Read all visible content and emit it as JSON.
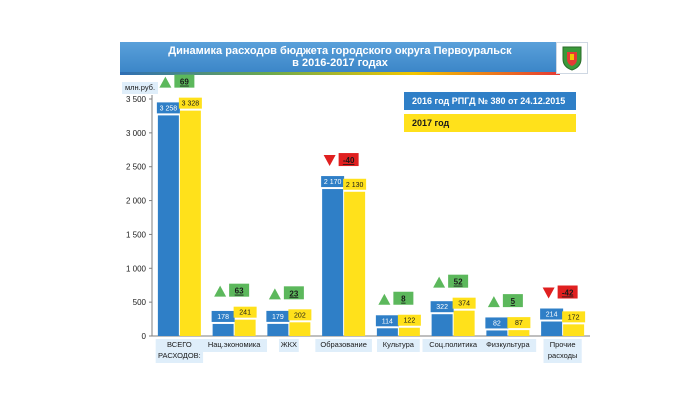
{
  "title_line1": "Динамика расходов бюджета городского округа Первоуральск",
  "title_line2": "в 2016-2017 годах",
  "emblem_icon": "coat-of-arms-icon",
  "legend": {
    "label_2016": "2016 год РПГД № 380 от 24.12.2015",
    "label_2017": "2017 год"
  },
  "colors": {
    "s2016": "#2f7fc7",
    "s2017": "#ffe11b",
    "up": "#5cb85c",
    "down": "#e02020",
    "title_bg": "#4a95d4"
  },
  "chart_data": {
    "type": "bar",
    "ylabel": "млн.руб.",
    "ylim": [
      0,
      3500
    ],
    "yticks": [
      0,
      500,
      1000,
      1500,
      2000,
      2500,
      3000,
      3500
    ],
    "ytick_labels": [
      "0",
      "500",
      "1 000",
      "1 500",
      "2 000",
      "2 500",
      "3 000",
      "3 500"
    ],
    "categories": [
      "ВСЕГО РАСХОДОВ:",
      "Нац.экономика",
      "ЖКХ",
      "Образование",
      "Культура",
      "Соц.политика",
      "Физкультура",
      "Прочие расходы"
    ],
    "category_lines": [
      [
        "ВСЕГО",
        "РАСХОДОВ:"
      ],
      [
        "Нац.экономика"
      ],
      [
        "ЖКХ"
      ],
      [
        "Образование"
      ],
      [
        "Культура"
      ],
      [
        "Соц.политика"
      ],
      [
        "Физкультура"
      ],
      [
        "Прочие",
        "расходы"
      ]
    ],
    "series": [
      {
        "name": "2016 год РПГД № 380 от 24.12.2015",
        "values": [
          3258,
          178,
          179,
          2170,
          114,
          322,
          82,
          214
        ],
        "labels": [
          "3 258",
          "178",
          "179",
          "2 170",
          "114",
          "322",
          "82",
          "214"
        ]
      },
      {
        "name": "2017 год",
        "values": [
          3328,
          241,
          202,
          2130,
          122,
          374,
          87,
          172
        ],
        "labels": [
          "3 328",
          "241",
          "202",
          "2 130",
          "122",
          "374",
          "87",
          "172"
        ]
      }
    ],
    "changes": [
      {
        "value": 69,
        "label": "69",
        "direction": "up"
      },
      {
        "value": 63,
        "label": "63",
        "direction": "up"
      },
      {
        "value": 23,
        "label": "23",
        "direction": "up"
      },
      {
        "value": -40,
        "label": "-40",
        "direction": "down"
      },
      {
        "value": 8,
        "label": "8",
        "direction": "up"
      },
      {
        "value": 52,
        "label": "52",
        "direction": "up"
      },
      {
        "value": 5,
        "label": "5",
        "direction": "up"
      },
      {
        "value": -42,
        "label": "-42",
        "direction": "down"
      }
    ],
    "legend_position": "top-right"
  }
}
